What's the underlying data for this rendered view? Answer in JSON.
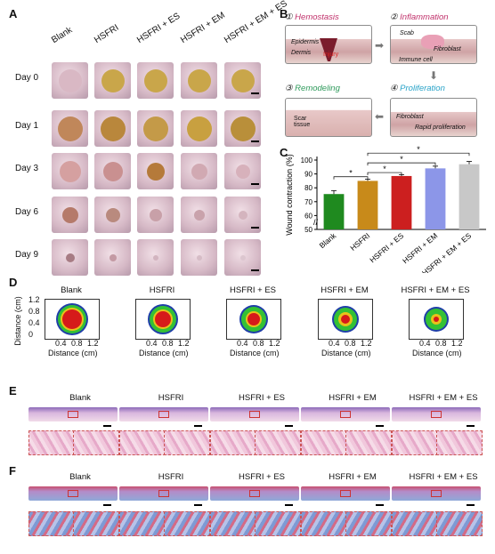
{
  "panels": {
    "a": "A",
    "b": "B",
    "c": "C",
    "d": "D",
    "e": "E",
    "f": "F"
  },
  "groups": [
    "Blank",
    "HSFRI",
    "HSFRI + ES",
    "HSFRI + EM",
    "HSFRI + EM + ES"
  ],
  "days": [
    "Day 0",
    "Day 1",
    "Day 3",
    "Day 6",
    "Day 9"
  ],
  "stages": [
    {
      "num": "①",
      "title": "Hemostasis",
      "color": "#c0306a"
    },
    {
      "num": "②",
      "title": "Inflammation",
      "color": "#c0306a"
    },
    {
      "num": "③",
      "title": "Remodeling",
      "color": "#2e9a5b"
    },
    {
      "num": "④",
      "title": "Proliferation",
      "color": "#29a3c8"
    }
  ],
  "stage_labels": {
    "epidermis": "Epidermis",
    "dermis": "Dermis",
    "injury": "Injury",
    "scab": "Scab",
    "fibroblast": "Fibroblast",
    "immune_cell": "Immune cell",
    "scar_tissue": "Scar tissue",
    "fibroblast2": "Fibroblast",
    "rapid": "Rapid proliferation"
  },
  "chart_data": {
    "type": "bar",
    "categories": [
      "Blank",
      "HSFRI",
      "HSFRI + ES",
      "HSFRI + EM",
      "HSFRI + EM + ES"
    ],
    "values": [
      75.5,
      85,
      88.5,
      94,
      97
    ],
    "errors": [
      2.5,
      1.2,
      1.0,
      1.6,
      2.0
    ],
    "colors": [
      "#1f8a1f",
      "#c88a1a",
      "#cc1f1f",
      "#8c96e8",
      "#c8c8c8"
    ],
    "ylabel": "Wound contraction (%)",
    "ylim": [
      50,
      100
    ],
    "yticks": [
      50,
      60,
      70,
      80,
      90,
      100
    ],
    "axis_break": true,
    "significance": "*"
  },
  "distance_maps": {
    "ylabel": "Distance (cm)",
    "xlabel": "Distance (cm)",
    "yticks": [
      "1.2",
      "0.8",
      "0.4",
      "0"
    ],
    "xticks": [
      "0.4",
      "0.8",
      "1.2"
    ]
  }
}
